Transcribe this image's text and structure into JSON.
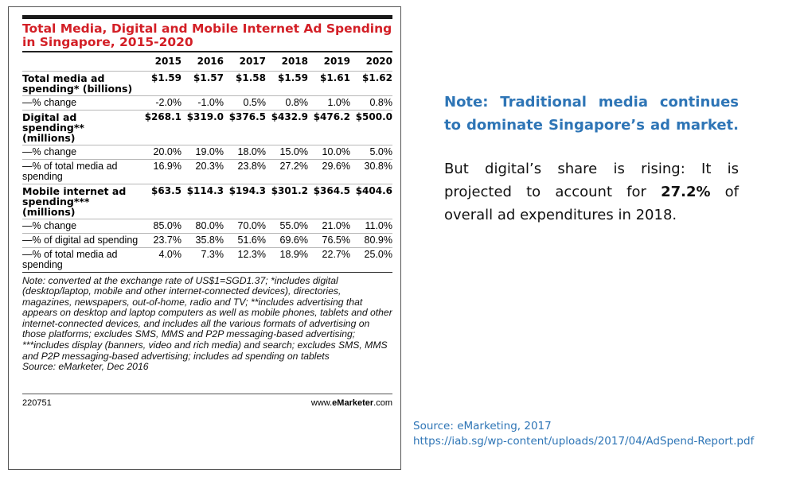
{
  "table": {
    "title": "Total Media, Digital and Mobile Internet Ad Spending in Singapore, 2015-2020",
    "years": [
      "2015",
      "2016",
      "2017",
      "2018",
      "2019",
      "2020"
    ],
    "rows": [
      {
        "label": "Total media ad spending* (billions)",
        "values": [
          "$1.59",
          "$1.57",
          "$1.58",
          "$1.59",
          "$1.61",
          "$1.62"
        ],
        "bold": true
      },
      {
        "label": "—% change",
        "values": [
          "-2.0%",
          "-1.0%",
          "0.5%",
          "0.8%",
          "1.0%",
          "0.8%"
        ],
        "bold": false
      },
      {
        "label": "Digital ad spending** (millions)",
        "values": [
          "$268.1",
          "$319.0",
          "$376.5",
          "$432.9",
          "$476.2",
          "$500.0"
        ],
        "bold": true
      },
      {
        "label": "—% change",
        "values": [
          "20.0%",
          "19.0%",
          "18.0%",
          "15.0%",
          "10.0%",
          "5.0%"
        ],
        "bold": false
      },
      {
        "label": "—% of total media ad spending",
        "values": [
          "16.9%",
          "20.3%",
          "23.8%",
          "27.2%",
          "29.6%",
          "30.8%"
        ],
        "bold": false
      },
      {
        "label": "Mobile internet ad spending*** (millions)",
        "values": [
          "$63.5",
          "$114.3",
          "$194.3",
          "$301.2",
          "$364.5",
          "$404.6"
        ],
        "bold": true
      },
      {
        "label": "—% change",
        "values": [
          "85.0%",
          "80.0%",
          "70.0%",
          "55.0%",
          "21.0%",
          "11.0%"
        ],
        "bold": false
      },
      {
        "label": "—% of digital ad spending",
        "values": [
          "23.7%",
          "35.8%",
          "51.6%",
          "69.6%",
          "76.5%",
          "80.9%"
        ],
        "bold": false
      },
      {
        "label": "—% of total media ad spending",
        "values": [
          "4.0%",
          "7.3%",
          "12.3%",
          "18.9%",
          "22.7%",
          "25.0%"
        ],
        "bold": false
      }
    ],
    "note": "Note: converted at the exchange rate of US$1=SGD1.37; *includes digital (desktop/laptop, mobile and other internet-connected devices), directories, magazines, newspapers, out-of-home, radio and TV; **includes advertising that appears on desktop and laptop computers as well as mobile phones, tablets and other internet-connected devices, and includes all the various formats of advertising on those platforms; excludes SMS, MMS and P2P messaging-based advertising; ***includes display (banners, video and rich media) and search; excludes SMS, MMS and P2P messaging-based advertising; includes ad spending on tablets",
    "source": "Source: eMarketer, Dec 2016",
    "chart_id": "220751",
    "site_prefix": "www.",
    "site_brand": "eMarketer",
    "site_suffix": ".com"
  },
  "side_note": {
    "heading": "Note: Traditional media continues to dominate Singapore’s ad market.",
    "body_before": "But digital’s share is rising: It is projected to account for ",
    "body_highlight": "27.2%",
    "body_after": " of overall ad expenditures in 2018."
  },
  "source_block": {
    "line1": "Source: eMarketing, 2017",
    "line2": "https://iab.sg/wp-content/uploads/2017/04/AdSpend-Report.pdf"
  },
  "colors": {
    "title_red": "#d31f26",
    "note_blue": "#2e75b6"
  }
}
